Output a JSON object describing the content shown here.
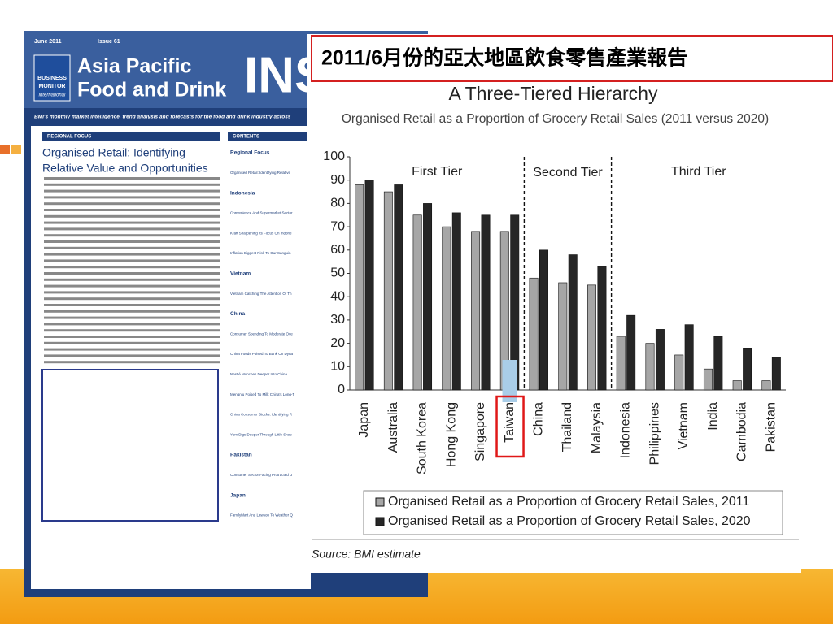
{
  "chart_data": {
    "type": "bar",
    "header": "2011/6月份的亞太地區飲食零售產業報告",
    "title": "A Three-Tiered Hierarchy",
    "subtitle": "Organised Retail as a Proportion of Grocery Retail Sales (2011 versus 2020)",
    "categories": [
      "Japan",
      "Australia",
      "South Korea",
      "Hong Kong",
      "Singapore",
      "Taiwan",
      "China",
      "Thailand",
      "Malaysia",
      "Indonesia",
      "Philippines",
      "Vietnam",
      "India",
      "Cambodia",
      "Pakistan"
    ],
    "series": [
      {
        "name": "Organised Retail as a Proportion of Grocery Retail Sales, 2011",
        "color": "#a6a6a6",
        "values": [
          88,
          85,
          75,
          70,
          68,
          68,
          48,
          46,
          45,
          23,
          20,
          15,
          9,
          4,
          4
        ]
      },
      {
        "name": "Organised Retail as a Proportion of Grocery Retail Sales, 2020",
        "color": "#262626",
        "values": [
          90,
          88,
          80,
          76,
          75,
          75,
          60,
          58,
          53,
          32,
          26,
          28,
          23,
          18,
          14
        ]
      }
    ],
    "tiers": [
      {
        "name": "First Tier",
        "last": "Taiwan"
      },
      {
        "name": "Second Tier",
        "last": "Malaysia"
      },
      {
        "name": "Third Tier",
        "last": "Pakistan"
      }
    ],
    "highlight": "Taiwan",
    "ylim": [
      0,
      100
    ],
    "yticks": [
      0,
      10,
      20,
      30,
      40,
      50,
      60,
      70,
      80,
      90,
      100
    ],
    "legend": "bottom",
    "source": "Source: BMI estimate"
  },
  "newsletter": {
    "date": "June 2011",
    "issue": "Issue 61",
    "brand": [
      "BUSINESS",
      "MONITOR",
      "international"
    ],
    "title": [
      "Asia Pacific",
      "Food and Drink"
    ],
    "masthead": "INS",
    "tagline": "BMI's monthly market intelligence, trend analysis and forecasts for the food and drink industry across",
    "section": "REGIONAL FOCUS",
    "contents": "CONTENTS",
    "headline": [
      "Organised Retail: Identifying",
      "Relative Value and Opportunities"
    ],
    "contents_items": [
      "Regional Focus",
      "Organised Retail: Identifying Relative",
      "Indonesia",
      "Convenience And Supermarket Sector",
      "Kraft Sharpening Its Focus On Indone",
      "Inflation Biggest Risk To Our Sanguin",
      "Vietnam",
      "Vietnam Catching The Attention Of Th",
      "China",
      "Consumer Spending To Moderate Ove",
      "China Foods Poised To Bank On Dyna",
      "Nestlé Munches Deeper Into China ...",
      "Mengniu Poised To Milk China's Long-T",
      "China Consumer Stocks: Identifying R",
      "Yum Digs Deeper Through Little Shee",
      "Pakistan",
      "Consumer Sector Facing Protracted U",
      "Japan",
      "FamilyMart And Lawson To Weather Q"
    ]
  }
}
